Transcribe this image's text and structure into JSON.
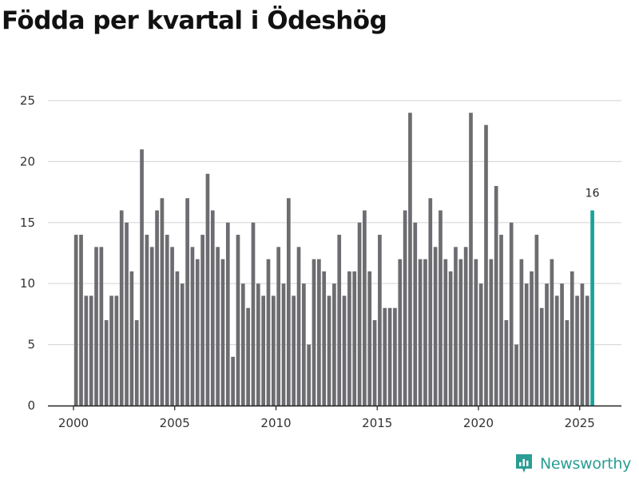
{
  "chart_data": {
    "type": "bar",
    "title": "Födda per kvartal i Ödeshög",
    "xlabel": "",
    "ylabel": "",
    "ylim": [
      0,
      25
    ],
    "yticks": [
      0,
      5,
      10,
      15,
      20,
      25
    ],
    "xticks": [
      "2000",
      "2005",
      "2010",
      "2015",
      "2020",
      "2025"
    ],
    "grid": true,
    "start_year": 2000,
    "quarters_per_year": 4,
    "values": [
      14,
      14,
      9,
      9,
      13,
      13,
      7,
      9,
      9,
      16,
      15,
      11,
      7,
      21,
      14,
      13,
      16,
      17,
      14,
      13,
      11,
      10,
      17,
      13,
      12,
      14,
      19,
      16,
      13,
      12,
      15,
      4,
      14,
      10,
      8,
      15,
      10,
      9,
      12,
      9,
      13,
      10,
      17,
      9,
      13,
      10,
      5,
      12,
      12,
      11,
      9,
      10,
      14,
      9,
      11,
      11,
      15,
      16,
      11,
      7,
      14,
      8,
      8,
      8,
      12,
      16,
      24,
      15,
      12,
      12,
      17,
      13,
      16,
      12,
      11,
      13,
      12,
      13,
      24,
      12,
      10,
      23,
      12,
      18,
      14,
      7,
      15,
      5,
      12,
      10,
      11,
      14,
      8,
      10,
      12,
      9,
      10,
      7,
      11,
      9,
      10,
      9,
      16
    ],
    "highlight_index": 102,
    "highlight_label": "16",
    "colors": {
      "bar": "#6d6c70",
      "highlight": "#1aa39a",
      "grid": "#d9d9d9",
      "axis": "#222222"
    }
  },
  "brand": {
    "name": "Newsworthy",
    "icon": "newsworthy-logo-icon",
    "color": "#2a9d94"
  }
}
